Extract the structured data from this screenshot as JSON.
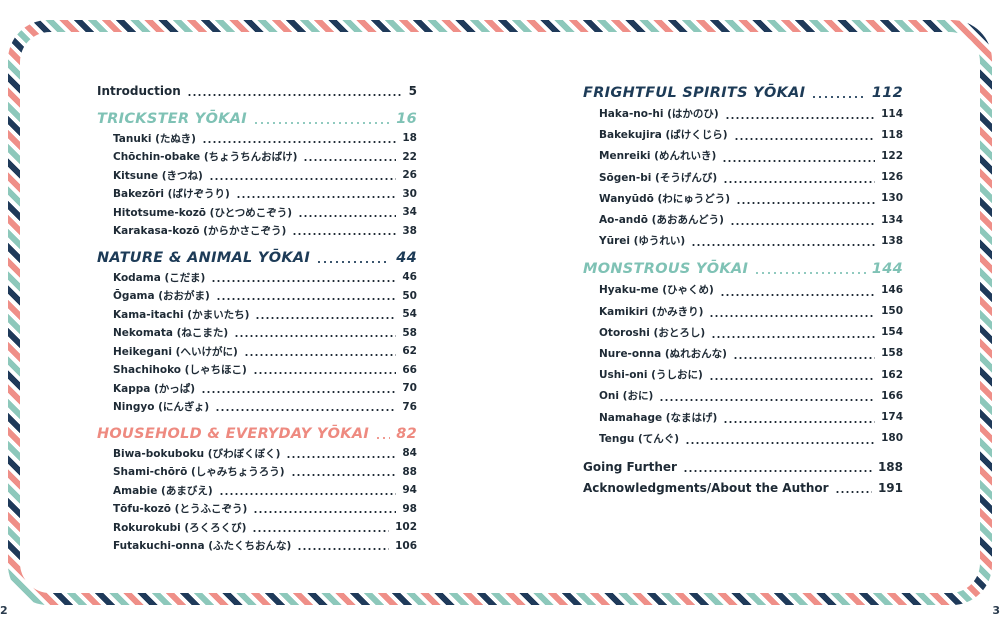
{
  "page_numbers": {
    "left": "2",
    "right": "3"
  },
  "left": {
    "intro": {
      "label": "Introduction",
      "page": 5
    },
    "sections": [
      {
        "title": "TRICKSTER YŌKAI",
        "page": 16,
        "color": "#7fc2b5",
        "entries": [
          {
            "label": "Tanuki (たぬき)",
            "page": 18
          },
          {
            "label": "Chōchin-obake (ちょうちんおばけ)",
            "page": 22
          },
          {
            "label": "Kitsune (きつね)",
            "page": 26
          },
          {
            "label": "Bakezōri (ばけぞうり)",
            "page": 30
          },
          {
            "label": "Hitotsume-kozō (ひとつめこぞう)",
            "page": 34
          },
          {
            "label": "Karakasa-kozō (からかさこぞう)",
            "page": 38
          }
        ]
      },
      {
        "title": "NATURE & ANIMAL YŌKAI",
        "page": 44,
        "color": "#1d3b57",
        "entries": [
          {
            "label": "Kodama (こだま)",
            "page": 46
          },
          {
            "label": "Ōgama (おおがま)",
            "page": 50
          },
          {
            "label": "Kama-itachi (かまいたち)",
            "page": 54
          },
          {
            "label": "Nekomata (ねこまた)",
            "page": 58
          },
          {
            "label": "Heikegani (へいけがに)",
            "page": 62
          },
          {
            "label": "Shachihoko (しゃちほこ)",
            "page": 66
          },
          {
            "label": "Kappa (かっぱ)",
            "page": 70
          },
          {
            "label": "Ningyo (にんぎょ)",
            "page": 76
          }
        ]
      },
      {
        "title": "HOUSEHOLD & EVERYDAY YŌKAI",
        "page": 82,
        "color": "#ee8a80",
        "entries": [
          {
            "label": "Biwa-bokuboku (びわぼくぼく)",
            "page": 84
          },
          {
            "label": "Shami-chōrō (しゃみちょうろう)",
            "page": 88
          },
          {
            "label": "Amabie (あまびえ)",
            "page": 94
          },
          {
            "label": "Tōfu-kozō (とうふこぞう)",
            "page": 98
          },
          {
            "label": "Rokurokubi (ろくろくび)",
            "page": 102
          },
          {
            "label": "Futakuchi-onna (ふたくちおんな)",
            "page": 106
          }
        ]
      }
    ]
  },
  "right": {
    "sections": [
      {
        "title": "FRIGHTFUL SPIRITS YŌKAI",
        "page": 112,
        "color": "#1d3b57",
        "entries": [
          {
            "label": "Haka-no-hi (はかのひ)",
            "page": 114
          },
          {
            "label": "Bakekujira (ばけくじら)",
            "page": 118
          },
          {
            "label": "Menreiki (めんれいき)",
            "page": 122
          },
          {
            "label": "Sōgen-bi (そうげんび)",
            "page": 126
          },
          {
            "label": "Wanyūdō (わにゅうどう)",
            "page": 130
          },
          {
            "label": "Ao-andō (あおあんどう)",
            "page": 134
          },
          {
            "label": "Yūrei (ゆうれい)",
            "page": 138
          }
        ]
      },
      {
        "title": "MONSTROUS YŌKAI",
        "page": 144,
        "color": "#7fc2b5",
        "entries": [
          {
            "label": "Hyaku-me (ひゃくめ)",
            "page": 146
          },
          {
            "label": "Kamikiri (かみきり)",
            "page": 150
          },
          {
            "label": "Otoroshi (おとろし)",
            "page": 154
          },
          {
            "label": "Nure-onna (ぬれおんな)",
            "page": 158
          },
          {
            "label": "Ushi-oni (うしおに)",
            "page": 162
          },
          {
            "label": "Oni (おに)",
            "page": 166
          },
          {
            "label": "Namahage (なまはげ)",
            "page": 174
          },
          {
            "label": "Tengu (てんぐ)",
            "page": 180
          }
        ]
      }
    ],
    "back_matter": [
      {
        "label": "Going Further",
        "page": 188
      },
      {
        "label": "Acknowledgments/About the Author",
        "page": 191
      }
    ]
  }
}
